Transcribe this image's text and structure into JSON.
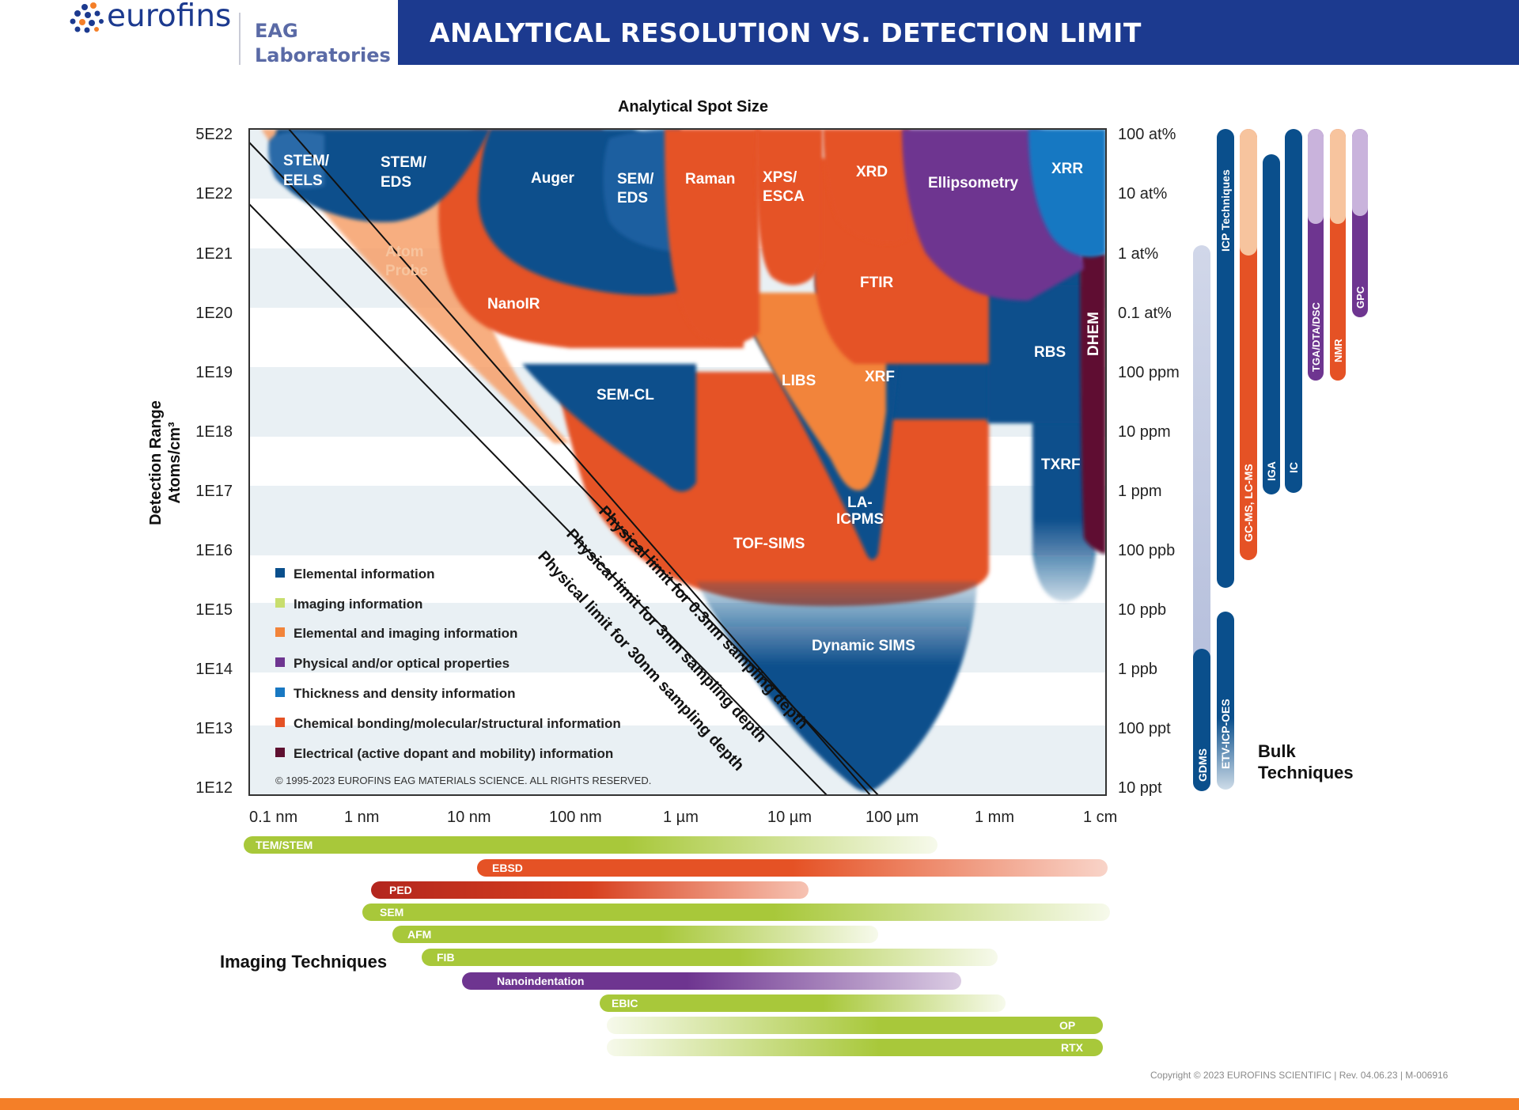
{
  "header": {
    "logo_text": "eurofins",
    "logo_sub_1": "EAG",
    "logo_sub_2": "Laboratories",
    "title": "ANALYTICAL RESOLUTION VS. DETECTION LIMIT"
  },
  "colors": {
    "header_band": "#1c3a8f",
    "elemental": "#0a4f8c",
    "imaging": "#a8c83a",
    "elemental_imaging": "#f2843a",
    "physical_optical": "#6e3590",
    "thickness_density": "#1878c2",
    "chemical": "#e55225",
    "electrical": "#5e1030",
    "bottom_strip": "#f47f28"
  },
  "chart": {
    "title": "Analytical Spot Size",
    "y_axis_label_1": "Detection Range",
    "y_axis_label_2": "Atoms/cm³",
    "y_ticks_left": [
      "5E22",
      "1E22",
      "1E21",
      "1E20",
      "1E19",
      "1E18",
      "1E17",
      "1E16",
      "1E15",
      "1E14",
      "1E13",
      "1E12"
    ],
    "y_ticks_right": [
      "100 at%",
      "10 at%",
      "1 at%",
      "0.1 at%",
      "100 ppm",
      "10 ppm",
      "1 ppm",
      "100 ppb",
      "10 ppb",
      "1 ppb",
      "100 ppt",
      "10 ppt"
    ],
    "x_ticks": [
      "0.1 nm",
      "1 nm",
      "10 nm",
      "100 nm",
      "1 µm",
      "10 µm",
      "100 µm",
      "1 mm",
      "1 cm"
    ],
    "limit_lines": [
      "Physical limit for 0.3nm sampling depth",
      "Physical limit for 3nm sampling depth",
      "Physical limit for 30nm sampling depth"
    ],
    "copyright": "© 1995-2023 EUROFINS EAG MATERIALS SCIENCE. ALL RIGHTS RESERVED."
  },
  "regions": {
    "stem_eels_1": "STEM/",
    "stem_eels_2": "EELS",
    "stem_eds_1": "STEM/",
    "stem_eds_2": "EDS",
    "auger": "Auger",
    "sem_eds_1": "SEM/",
    "sem_eds_2": "EDS",
    "raman": "Raman",
    "xps_1": "XPS/",
    "xps_2": "ESCA",
    "xrd": "XRD",
    "ellipsometry": "Ellipsometry",
    "xrr": "XRR",
    "atom_probe_1": "Atom",
    "atom_probe_2": "Probe",
    "nanoir": "NanoIR",
    "ftir": "FTIR",
    "dhem": "DHEM",
    "rbs": "RBS",
    "sem_cl": "SEM-CL",
    "libs": "LIBS",
    "xrf": "XRF",
    "txrf": "TXRF",
    "la_icpms_1": "LA-",
    "la_icpms_2": "ICPMS",
    "tof_sims": "TOF-SIMS",
    "dynamic_sims": "Dynamic SIMS"
  },
  "legend": [
    "Elemental information",
    "Imaging information",
    "Elemental and imaging information",
    "Physical and/or optical properties",
    "Thickness and density information",
    "Chemical bonding/molecular/structural information",
    "Electrical (active dopant and mobility) information"
  ],
  "bulk": {
    "title_1": "Bulk",
    "title_2": "Techniques",
    "bars": [
      "GDMS",
      "ICP Techniques",
      "ETV-ICP-OES",
      "GC-MS, LC-MS",
      "IGA",
      "IC",
      "TGA/DTA/DSC",
      "NMR",
      "GPC"
    ]
  },
  "imaging": {
    "title": "Imaging Techniques",
    "bars": [
      "TEM/STEM",
      "EBSD",
      "PED",
      "SEM",
      "AFM",
      "FIB",
      "Nanoindentation",
      "EBIC",
      "OP",
      "RTX"
    ]
  },
  "footer": {
    "copyright": "Copyright © 2023 EUROFINS SCIENTIFIC | Rev. 04.06.23 | M-006916"
  }
}
